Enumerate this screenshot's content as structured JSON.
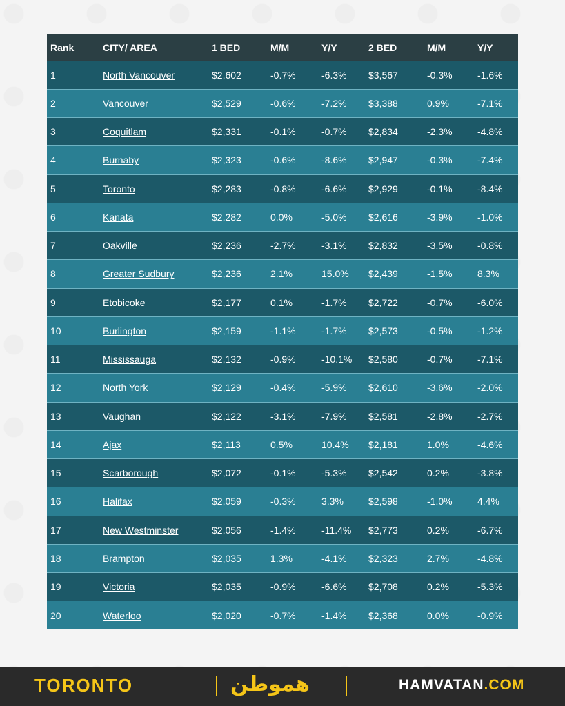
{
  "header": {
    "rank": "Rank",
    "city": "CITY/ AREA",
    "bed1": "1 BED",
    "mm1": "M/M",
    "yy1": "Y/Y",
    "bed2": "2 BED",
    "mm2": "M/M",
    "yy2": "Y/Y"
  },
  "rows": [
    {
      "rank": "1",
      "city": "North Vancouver",
      "bed1": "$2,602",
      "mm1": "-0.7%",
      "yy1": "-6.3%",
      "bed2": "$3,567",
      "mm2": "-0.3%",
      "yy2": "-1.6%"
    },
    {
      "rank": "2",
      "city": "Vancouver",
      "bed1": "$2,529",
      "mm1": "-0.6%",
      "yy1": "-7.2%",
      "bed2": "$3,388",
      "mm2": "0.9%",
      "yy2": "-7.1%"
    },
    {
      "rank": "3",
      "city": "Coquitlam",
      "bed1": "$2,331",
      "mm1": "-0.1%",
      "yy1": "-0.7%",
      "bed2": "$2,834",
      "mm2": "-2.3%",
      "yy2": "-4.8%"
    },
    {
      "rank": "4",
      "city": "Burnaby",
      "bed1": "$2,323",
      "mm1": "-0.6%",
      "yy1": "-8.6%",
      "bed2": "$2,947",
      "mm2": "-0.3%",
      "yy2": "-7.4%"
    },
    {
      "rank": "5",
      "city": "Toronto",
      "bed1": "$2,283",
      "mm1": "-0.8%",
      "yy1": "-6.6%",
      "bed2": "$2,929",
      "mm2": "-0.1%",
      "yy2": "-8.4%"
    },
    {
      "rank": "6",
      "city": "Kanata",
      "bed1": "$2,282",
      "mm1": "0.0%",
      "yy1": "-5.0%",
      "bed2": "$2,616",
      "mm2": "-3.9%",
      "yy2": "-1.0%"
    },
    {
      "rank": "7",
      "city": "Oakville",
      "bed1": "$2,236",
      "mm1": "-2.7%",
      "yy1": "-3.1%",
      "bed2": "$2,832",
      "mm2": "-3.5%",
      "yy2": "-0.8%"
    },
    {
      "rank": "8",
      "city": "Greater Sudbury",
      "bed1": "$2,236",
      "mm1": "2.1%",
      "yy1": "15.0%",
      "bed2": "$2,439",
      "mm2": "-1.5%",
      "yy2": "8.3%"
    },
    {
      "rank": "9",
      "city": "Etobicoke",
      "bed1": "$2,177",
      "mm1": "0.1%",
      "yy1": "-1.7%",
      "bed2": "$2,722",
      "mm2": "-0.7%",
      "yy2": "-6.0%"
    },
    {
      "rank": "10",
      "city": "Burlington",
      "bed1": "$2,159",
      "mm1": "-1.1%",
      "yy1": "-1.7%",
      "bed2": "$2,573",
      "mm2": "-0.5%",
      "yy2": "-1.2%"
    },
    {
      "rank": "11",
      "city": "Mississauga",
      "bed1": "$2,132",
      "mm1": "-0.9%",
      "yy1": "-10.1%",
      "bed2": "$2,580",
      "mm2": "-0.7%",
      "yy2": "-7.1%"
    },
    {
      "rank": "12",
      "city": "North York",
      "bed1": "$2,129",
      "mm1": "-0.4%",
      "yy1": "-5.9%",
      "bed2": "$2,610",
      "mm2": "-3.6%",
      "yy2": "-2.0%"
    },
    {
      "rank": "13",
      "city": "Vaughan",
      "bed1": "$2,122",
      "mm1": "-3.1%",
      "yy1": "-7.9%",
      "bed2": "$2,581",
      "mm2": "-2.8%",
      "yy2": "-2.7%"
    },
    {
      "rank": "14",
      "city": "Ajax",
      "bed1": "$2,113",
      "mm1": "0.5%",
      "yy1": "10.4%",
      "bed2": "$2,181",
      "mm2": "1.0%",
      "yy2": "-4.6%"
    },
    {
      "rank": "15",
      "city": "Scarborough",
      "bed1": "$2,072",
      "mm1": "-0.1%",
      "yy1": "-5.3%",
      "bed2": "$2,542",
      "mm2": "0.2%",
      "yy2": "-3.8%"
    },
    {
      "rank": "16",
      "city": "Halifax",
      "bed1": "$2,059",
      "mm1": "-0.3%",
      "yy1": "3.3%",
      "bed2": "$2,598",
      "mm2": "-1.0%",
      "yy2": "4.4%"
    },
    {
      "rank": "17",
      "city": "New Westminster",
      "bed1": "$2,056",
      "mm1": "-1.4%",
      "yy1": "-11.4%",
      "bed2": "$2,773",
      "mm2": "0.2%",
      "yy2": "-6.7%"
    },
    {
      "rank": "18",
      "city": "Brampton",
      "bed1": "$2,035",
      "mm1": "1.3%",
      "yy1": "-4.1%",
      "bed2": "$2,323",
      "mm2": "2.7%",
      "yy2": "-4.8%"
    },
    {
      "rank": "19",
      "city": "Victoria",
      "bed1": "$2,035",
      "mm1": "-0.9%",
      "yy1": "-6.6%",
      "bed2": "$2,708",
      "mm2": "0.2%",
      "yy2": "-5.3%"
    },
    {
      "rank": "20",
      "city": "Waterloo",
      "bed1": "$2,020",
      "mm1": "-0.7%",
      "yy1": "-1.4%",
      "bed2": "$2,368",
      "mm2": "0.0%",
      "yy2": "-0.9%"
    }
  ],
  "footer": {
    "left": "TORONTO",
    "logo": "هموطن",
    "right_main": "HAMVATAN",
    "right_tld": ".COM"
  },
  "colors": {
    "header_bg": "#2b3f44",
    "row_dark": "#1c5968",
    "row_light": "#2a7f93",
    "footer_bg": "#2a2a2a",
    "accent": "#f5c518"
  }
}
